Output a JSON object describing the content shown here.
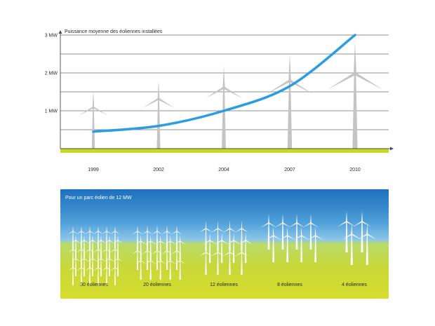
{
  "chart_data": [
    {
      "type": "line",
      "title": "Puissance moyenne des éoliennes installées",
      "y_ticks": [
        "1 MW",
        "2 MW",
        "3 MW"
      ],
      "ylim": [
        0,
        3
      ],
      "categories": [
        "1999",
        "2002",
        "2004",
        "2007",
        "2010"
      ],
      "values": [
        0.45,
        0.6,
        1.0,
        1.65,
        3.0
      ],
      "grid": true,
      "line_color": "#2a9ee0",
      "ground_color": "#c5db22"
    },
    {
      "type": "bar",
      "title": "Pour un parc éolien de 12 MW",
      "categories": [
        "30 éoliennes",
        "20 éoliennes",
        "12 éoliennes",
        "8 éoliennes",
        "4 éoliennes"
      ],
      "values": [
        30,
        20,
        12,
        8,
        4
      ],
      "sky_color": "#1c6fbe",
      "field_color": "#c8d83a"
    }
  ]
}
